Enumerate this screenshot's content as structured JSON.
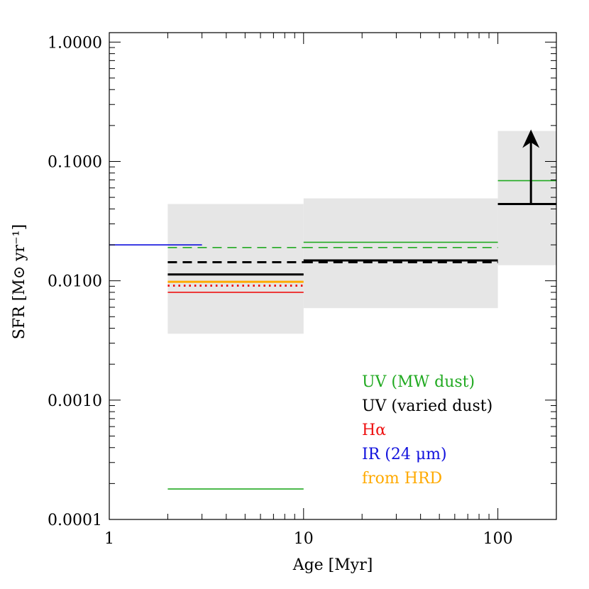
{
  "chart_data": {
    "type": "line",
    "title": "",
    "xlabel": "Age [Myr]",
    "ylabel": "SFR [M⊙ yr⁻¹]",
    "xscale": "log",
    "yscale": "log",
    "xlim": [
      1,
      200
    ],
    "ylim": [
      0.0001,
      1.2
    ],
    "grid": false,
    "x_ticks": [
      {
        "value": 1,
        "label": "1"
      },
      {
        "value": 10,
        "label": "10"
      },
      {
        "value": 100,
        "label": "100"
      }
    ],
    "y_ticks": [
      {
        "value": 0.0001,
        "label": "0.0001"
      },
      {
        "value": 0.001,
        "label": "0.0010"
      },
      {
        "value": 0.01,
        "label": "0.0100"
      },
      {
        "value": 0.1,
        "label": "0.1000"
      },
      {
        "value": 1,
        "label": "1.0000"
      }
    ],
    "colors": {
      "uv_mw": "#22aa22",
      "uv_varied": "#000000",
      "halpha": "#ee1111",
      "ir": "#1111dd",
      "hrd": "#ffaa00",
      "band": "#e6e6e6"
    },
    "bands": [
      {
        "x": [
          2,
          10
        ],
        "y": [
          0.0036,
          0.044
        ]
      },
      {
        "x": [
          10,
          100
        ],
        "y": [
          0.0059,
          0.049
        ]
      },
      {
        "x": [
          100,
          200
        ],
        "y": [
          0.0135,
          0.18
        ]
      }
    ],
    "segments": [
      {
        "series": "ir",
        "x": [
          1,
          3
        ],
        "y": 0.02,
        "style": "solid",
        "weight": "thin"
      },
      {
        "series": "uv_mw",
        "x": [
          2,
          10
        ],
        "y": 0.019,
        "style": "dashed",
        "weight": "thin"
      },
      {
        "series": "uv_varied",
        "x": [
          2,
          10
        ],
        "y": 0.0143,
        "style": "dashed",
        "weight": "thick"
      },
      {
        "series": "uv_varied",
        "x": [
          2,
          10
        ],
        "y": 0.0113,
        "style": "solid",
        "weight": "thick"
      },
      {
        "series": "hrd",
        "x": [
          2,
          10
        ],
        "y": 0.0098,
        "style": "solid",
        "weight": "thick"
      },
      {
        "series": "halpha",
        "x": [
          2,
          10
        ],
        "y": 0.0091,
        "style": "dotted",
        "weight": "thick"
      },
      {
        "series": "halpha",
        "x": [
          2,
          10
        ],
        "y": 0.008,
        "style": "solid",
        "weight": "thin"
      },
      {
        "series": "uv_mw",
        "x": [
          2,
          10
        ],
        "y": 0.00018,
        "style": "solid",
        "weight": "thin"
      },
      {
        "series": "uv_mw",
        "x": [
          10,
          100
        ],
        "y": 0.021,
        "style": "solid",
        "weight": "thin"
      },
      {
        "series": "uv_mw",
        "x": [
          10,
          100
        ],
        "y": 0.019,
        "style": "dashed",
        "weight": "thin"
      },
      {
        "series": "uv_varied",
        "x": [
          10,
          100
        ],
        "y": 0.0148,
        "style": "solid",
        "weight": "thick"
      },
      {
        "series": "uv_varied",
        "x": [
          10,
          100
        ],
        "y": 0.0143,
        "style": "dashed",
        "weight": "thick"
      },
      {
        "series": "uv_mw",
        "x": [
          100,
          200
        ],
        "y": 0.069,
        "style": "solid",
        "weight": "thin"
      },
      {
        "series": "uv_varied",
        "x": [
          100,
          200
        ],
        "y": 0.044,
        "style": "solid",
        "weight": "thick"
      }
    ],
    "lower_limit_arrow": {
      "series": "uv_varied",
      "x": 148,
      "y_from": 0.044,
      "y_to": 0.18
    },
    "legend": {
      "placement": "bottom-right",
      "entries": [
        {
          "series": "uv_mw",
          "label": "UV (MW dust)"
        },
        {
          "series": "uv_varied",
          "label": "UV (varied dust)"
        },
        {
          "series": "halpha",
          "label": "Hα"
        },
        {
          "series": "ir",
          "label": "IR (24 μm)"
        },
        {
          "series": "hrd",
          "label": "from HRD"
        }
      ]
    }
  }
}
